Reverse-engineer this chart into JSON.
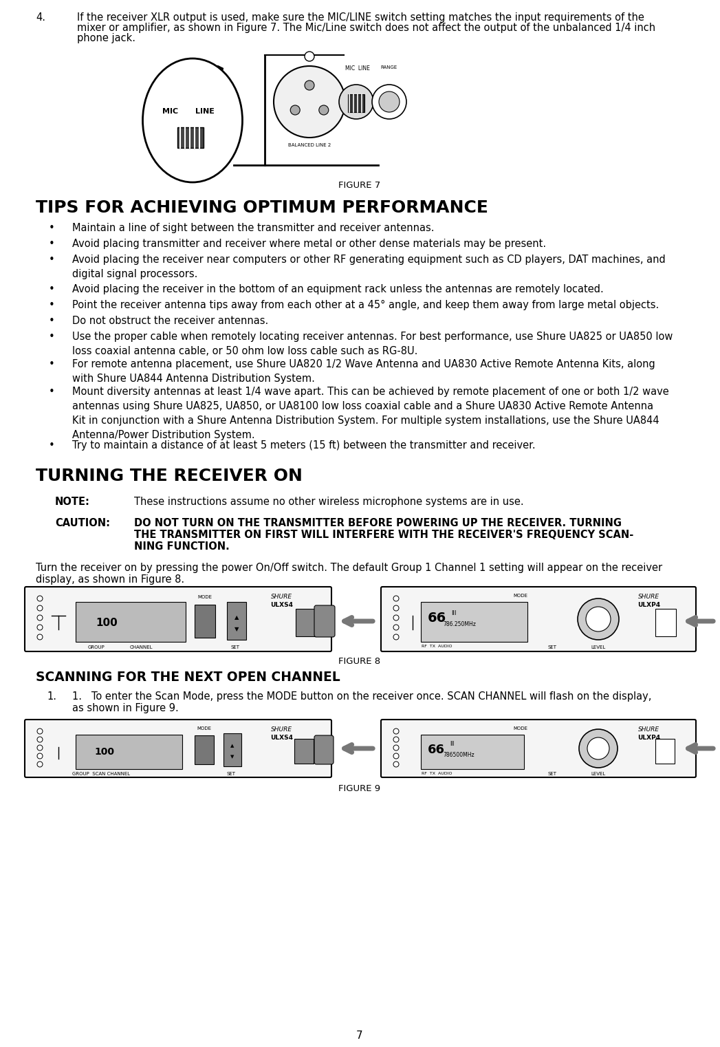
{
  "bg_color": "#ffffff",
  "page_number": "7",
  "item4_num": "4.",
  "item4_text_line1": "If the receiver XLR output is used, make sure the MIC/LINE switch setting matches the input requirements of the",
  "item4_text_line2": "mixer or amplifier, as shown in Figure 7. The Mic/Line switch does not affect the output of the unbalanced 1/4 inch",
  "item4_text_line3": "phone jack.",
  "figure7_label": "FIGURE 7",
  "tips_heading": "TIPS FOR ACHIEVING OPTIMUM PERFORMANCE",
  "bullets": [
    "Maintain a line of sight between the transmitter and receiver antennas.",
    "Avoid placing transmitter and receiver where metal or other dense materials may be present.",
    "Avoid placing the receiver near computers or other RF generating equipment such as CD players, DAT machines, and\ndigital signal processors.",
    "Avoid placing the receiver in the bottom of an equipment rack unless the antennas are remotely located.",
    "Point the receiver antenna tips away from each other at a 45° angle, and keep them away from large metal objects.",
    "Do not obstruct the receiver antennas.",
    "Use the proper cable when remotely locating receiver antennas. For best performance, use Shure UA825 or UA850 low\nloss coaxial antenna cable, or 50 ohm low loss cable such as RG-8U.",
    "For remote antenna placement, use Shure UA820 1/2 Wave Antenna and UA830 Active Remote Antenna Kits, along\nwith Shure UA844 Antenna Distribution System.",
    "Mount diversity antennas at least 1/4 wave apart. This can be achieved by remote placement of one or both 1/2 wave\nantennas using Shure UA825, UA850, or UA8100 low loss coaxial cable and a Shure UA830 Active Remote Antenna\nKit in conjunction with a Shure Antenna Distribution System. For multiple system installations, use the Shure UA844\nAntenna/Power Distribution System.",
    "Try to maintain a distance of at least 5 meters (15 ft) between the transmitter and receiver."
  ],
  "turning_heading": "TURNING THE RECEIVER ON",
  "note_label": "NOTE:",
  "note_text": "These instructions assume no other wireless microphone systems are in use.",
  "caution_label": "CAUTION:",
  "caution_line1": "DO NOT TURN ON THE TRANSMITTER BEFORE POWERING UP THE RECEIVER. TURNING",
  "caution_line2": "THE TRANSMITTER ON FIRST WILL INTERFERE WITH THE RECEIVER'S FREQUENCY SCAN-",
  "caution_line3": "NING FUNCTION.",
  "turn_on_line1": "Turn the receiver on by pressing the power On/Off switch. The default Group 1 Channel 1 setting will appear on the receiver",
  "turn_on_line2": "display, as shown in Figure 8.",
  "figure8_label": "FIGURE 8",
  "scanning_heading": "SCANNING FOR THE NEXT OPEN CHANNEL",
  "scan_line1": "1.   To enter the Scan Mode, press the MODE button on the receiver once. SCAN CHANNEL will flash on the display,",
  "scan_line2": "      as shown in Figure 9.",
  "figure9_label": "FIGURE 9"
}
